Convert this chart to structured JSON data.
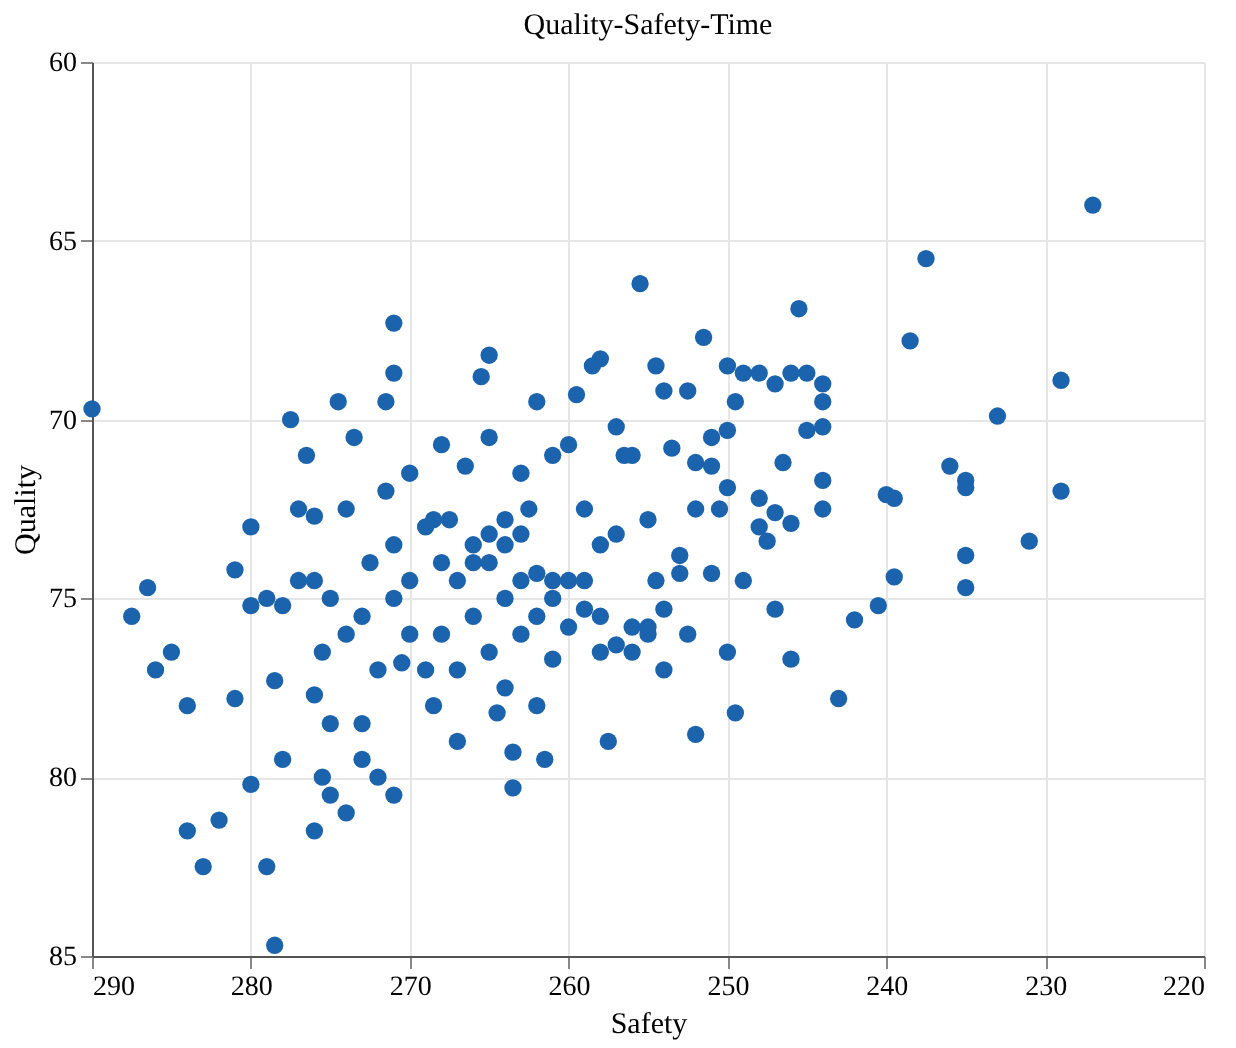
{
  "chart_data": {
    "type": "scatter",
    "title": "Quality-Safety-Time",
    "xlabel": "Safety",
    "ylabel": "Quality",
    "xlim": [
      290,
      220
    ],
    "xticks": [
      290,
      280,
      270,
      260,
      250,
      240,
      230,
      220
    ],
    "ylim": [
      85,
      60
    ],
    "yticks": [
      60,
      65,
      70,
      75,
      80,
      85
    ],
    "grid": true,
    "marker": "circle",
    "series": [
      {
        "color": "#1c63ad",
        "x": [
          290,
          287.5,
          286.5,
          286,
          285,
          284,
          284,
          283,
          282,
          281,
          281,
          280,
          280,
          280,
          279,
          279,
          278.5,
          278.5,
          278,
          278,
          277.5,
          277,
          277,
          276.5,
          276,
          276,
          276,
          276,
          275.5,
          275.5,
          275,
          275,
          275,
          274.5,
          274,
          274,
          274,
          273.5,
          273,
          273,
          273,
          272.5,
          272,
          272,
          271.5,
          271.5,
          271,
          271,
          271,
          271,
          271,
          270.5,
          270,
          270,
          270,
          269,
          269,
          268.5,
          268,
          268,
          268,
          267.5,
          267,
          267,
          267,
          266.5,
          266,
          266,
          265.5,
          265,
          265,
          265,
          265,
          264.5,
          264,
          264,
          264,
          263.5,
          263.5,
          263,
          263,
          263,
          262.5,
          262,
          262,
          262,
          261.5,
          261,
          261,
          261,
          260,
          260,
          259.5,
          259,
          259,
          258.5,
          258,
          258,
          258,
          257.5,
          257,
          257,
          256.5,
          256,
          256,
          255.5,
          255,
          255,
          254.5,
          254,
          254.5,
          254,
          253.5,
          253,
          252.5,
          252,
          252.5,
          252,
          251.5,
          251,
          251,
          250.5,
          250,
          250,
          250,
          249.5,
          249,
          248,
          248,
          247.5,
          247,
          247,
          246.5,
          246,
          245.5,
          245,
          245,
          244,
          244,
          244,
          244,
          244,
          243,
          242,
          240.5,
          240,
          239.5,
          239.5,
          238.5,
          237.5,
          236,
          235,
          235,
          235,
          235,
          233,
          231,
          229,
          229,
          227,
          268.5,
          266,
          265,
          264,
          263,
          262,
          261,
          260,
          259,
          258,
          257,
          256,
          255,
          254,
          253,
          252,
          251,
          250,
          249.5,
          249,
          248,
          247,
          246,
          246
        ],
        "values": [
          69.7,
          75.5,
          74.7,
          77,
          76.5,
          78,
          81.5,
          82.5,
          81.2,
          77.8,
          74.2,
          73,
          75.2,
          80.2,
          75,
          82.5,
          84.7,
          77.3,
          79.5,
          75.2,
          70,
          72.5,
          74.5,
          71,
          72.7,
          74.5,
          77.7,
          81.5,
          76.5,
          80,
          80.5,
          78.5,
          75,
          69.5,
          81,
          76,
          72.5,
          70.5,
          75.5,
          79.5,
          78.5,
          74,
          77,
          80,
          69.5,
          72,
          73.5,
          67.3,
          68.7,
          75,
          80.5,
          76.8,
          71.5,
          74.5,
          76,
          73,
          77,
          78,
          70.7,
          74,
          76,
          72.8,
          74.5,
          77,
          79,
          71.3,
          73.5,
          75.5,
          68.8,
          68.2,
          70.5,
          74,
          76.5,
          78.2,
          73.5,
          75,
          77.5,
          79.3,
          80.3,
          71.5,
          74.5,
          76,
          72.5,
          69.5,
          74.3,
          78,
          79.5,
          71,
          74.5,
          76.7,
          70.7,
          74.5,
          69.3,
          72.5,
          75.3,
          68.5,
          68.3,
          73.5,
          76.5,
          79,
          70.2,
          73.2,
          71,
          71,
          75.8,
          66.2,
          72.8,
          76,
          68.5,
          69.2,
          74.5,
          77,
          70.8,
          73.8,
          69.2,
          72.5,
          76,
          78.8,
          67.7,
          71.3,
          74.3,
          72.5,
          68.5,
          70.3,
          76.5,
          78.2,
          68.7,
          68.7,
          72.2,
          73.4,
          75.3,
          72.6,
          71.2,
          76.7,
          66.9,
          68.7,
          70.3,
          69,
          69.5,
          70.2,
          71.7,
          72.5,
          77.8,
          75.6,
          75.2,
          72.1,
          72.2,
          74.4,
          67.8,
          65.5,
          71.3,
          71.7,
          71.9,
          73.8,
          74.7,
          69.9,
          73.4,
          72,
          68.9,
          64,
          72.8,
          74,
          73.2,
          72.8,
          73.2,
          75.5,
          75,
          75.8,
          74.5,
          75.5,
          76.3,
          76.5,
          75.8,
          75.3,
          74.3,
          71.2,
          70.5,
          71.9,
          69.5,
          74.5,
          73,
          69,
          72.9,
          68.7
        ]
      }
    ]
  }
}
